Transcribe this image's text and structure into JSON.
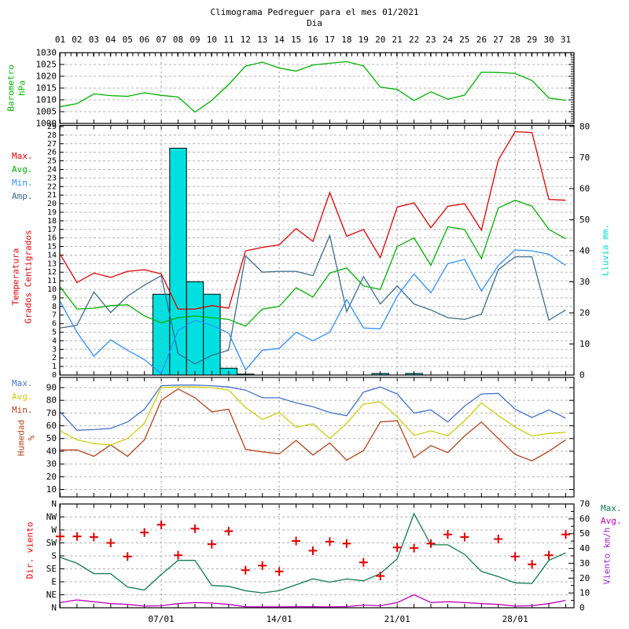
{
  "title": "Climograma Pedreguer para el mes 01/2021",
  "subtitle": "Dia",
  "x_axis": {
    "day_labels": [
      "01",
      "02",
      "03",
      "04",
      "05",
      "06",
      "07",
      "08",
      "09",
      "10",
      "11",
      "12",
      "13",
      "14",
      "15",
      "16",
      "17",
      "18",
      "19",
      "20",
      "21",
      "22",
      "23",
      "24",
      "25",
      "26",
      "27",
      "28",
      "29",
      "30",
      "31"
    ],
    "week_labels": [
      {
        "label": "07/01",
        "day": 7
      },
      {
        "label": "14/01",
        "day": 14
      },
      {
        "label": "21/01",
        "day": 21
      },
      {
        "label": "28/01",
        "day": 28
      }
    ]
  },
  "chart_data": [
    {
      "id": "barometer",
      "type": "line",
      "ylabel1": "Barometro",
      "ylabel2": "hPa",
      "color": "#00b000",
      "ylim": [
        1000,
        1030
      ],
      "yticks": [
        1000,
        1005,
        1010,
        1015,
        1020,
        1025,
        1030
      ],
      "grid": "dashed",
      "values": [
        1007.1,
        1008.4,
        1012.5,
        1011.8,
        1011.5,
        1013.0,
        1011.9,
        1011.2,
        1004.8,
        1009.8,
        1016.5,
        1024.3,
        1026.0,
        1023.5,
        1022.2,
        1024.8,
        1025.5,
        1026.2,
        1024.4,
        1015.4,
        1014.4,
        1009.7,
        1013.4,
        1010.3,
        1012.0,
        1021.7,
        1021.6,
        1021.2,
        1018.2,
        1010.8,
        1009.8
      ]
    },
    {
      "id": "temperature_rain",
      "type": "line+bar",
      "ylabel1": "Temperatura",
      "ylabel2": "Grados Centigrados",
      "axis_label_color": "#e00000",
      "ylim": [
        0,
        29
      ],
      "ytick_step": 1,
      "legend": [
        {
          "label": "Max.",
          "color": "#e00000"
        },
        {
          "label": "Avg.",
          "color": "#00b000"
        },
        {
          "label": "Min.",
          "color": "#2f8fff"
        },
        {
          "label": "Amp.",
          "color": "#3c6d8c"
        }
      ],
      "series": {
        "max": [
          14.1,
          10.8,
          11.9,
          11.4,
          12.1,
          12.3,
          11.8,
          7.7,
          7.7,
          8.1,
          7.8,
          14.5,
          14.9,
          15.2,
          17.1,
          15.6,
          21.3,
          16.2,
          17.0,
          13.7,
          19.6,
          20.1,
          17.2,
          19.7,
          20.0,
          16.9,
          25.1,
          28.4,
          28.3,
          20.5,
          20.4
        ],
        "avg": [
          10.3,
          7.7,
          7.8,
          8.1,
          8.2,
          6.9,
          6.1,
          6.7,
          6.9,
          6.7,
          6.5,
          5.7,
          7.7,
          8.0,
          10.2,
          9.1,
          11.9,
          12.5,
          10.4,
          10.0,
          15.0,
          16.0,
          12.8,
          17.3,
          17.0,
          13.6,
          19.5,
          20.4,
          19.7,
          17.0,
          15.9
        ],
        "min": [
          8.6,
          5.0,
          2.2,
          4.1,
          2.9,
          1.8,
          0.2,
          5.2,
          6.4,
          5.8,
          4.9,
          0.6,
          2.9,
          3.1,
          5.0,
          4.0,
          5.0,
          8.8,
          5.5,
          5.4,
          9.2,
          11.8,
          9.6,
          13.0,
          13.5,
          9.8,
          12.8,
          14.6,
          14.5,
          14.1,
          12.8
        ],
        "amp": [
          5.5,
          5.8,
          9.7,
          7.3,
          9.2,
          10.5,
          11.6,
          2.5,
          1.3,
          2.3,
          2.9,
          13.9,
          12.0,
          12.1,
          12.1,
          11.6,
          16.3,
          7.4,
          11.5,
          8.3,
          10.4,
          8.3,
          7.6,
          6.7,
          6.5,
          7.1,
          12.3,
          13.8,
          13.8,
          6.4,
          7.6
        ]
      },
      "rain_axis_label": "Lluvia mm.",
      "rain_color": "#00e0e0",
      "rain_label_color": "#00d4d4",
      "rain_ylim": [
        0,
        80
      ],
      "rain_yticks": [
        0,
        10,
        20,
        30,
        40,
        50,
        60,
        70,
        80
      ],
      "rain_values": [
        0,
        0,
        0,
        0,
        0,
        0,
        26,
        73,
        30,
        26,
        2.2,
        0.3,
        0,
        0,
        0,
        0,
        0,
        0,
        0,
        0.5,
        0,
        0.5,
        0,
        0,
        0,
        0,
        0,
        0,
        0,
        0,
        0
      ]
    },
    {
      "id": "humidity",
      "type": "line",
      "ylabel1": "Humedad",
      "ylabel2": "%",
      "axis_label_color": "#b2451b",
      "ylim": [
        0,
        100
      ],
      "yticks": [
        10,
        20,
        30,
        40,
        50,
        60,
        70,
        80,
        90
      ],
      "legend": [
        {
          "label": "Max.",
          "color": "#4472cc"
        },
        {
          "label": "Avg.",
          "color": "#cdcd11"
        },
        {
          "label": "Min.",
          "color": "#b2451b"
        }
      ],
      "series": {
        "max": [
          71,
          56.5,
          57,
          58,
          63,
          73,
          91.5,
          92,
          92,
          91.5,
          90.5,
          88,
          82,
          82,
          78,
          75,
          70.5,
          68,
          86.5,
          90.5,
          85,
          70,
          72.5,
          63,
          75.5,
          85,
          85.5,
          73,
          66.5,
          72.5,
          66
        ],
        "avg": [
          56,
          49,
          46,
          45,
          50,
          62,
          90,
          90.5,
          90.5,
          90,
          88,
          74.5,
          65,
          70.5,
          59,
          61.5,
          50,
          62,
          77,
          79,
          67,
          52.5,
          56,
          52,
          64,
          78,
          68,
          59,
          52,
          54,
          55
        ],
        "min": [
          41,
          41,
          36,
          45,
          36,
          49,
          80,
          89,
          82,
          71,
          73,
          41.5,
          39.5,
          38,
          48.5,
          37,
          46.5,
          33,
          40.5,
          63,
          64,
          35,
          44.5,
          39,
          52,
          63,
          50,
          37.5,
          32.5,
          40,
          49
        ]
      }
    },
    {
      "id": "wind",
      "type": "line+scatter",
      "ylabel1": "Dir. viento",
      "dir_color": "#e00000",
      "dir_axis": [
        "N",
        "NW",
        "W",
        "SW",
        "S",
        "SE",
        "E",
        "NE",
        "N"
      ],
      "dir_scale": "0=N 1=NW 2=W 3=SW 4=S 5=SE 6=E 7=NE 8=N",
      "dir_values": [
        2.5,
        2.5,
        2.55,
        3.0,
        4.05,
        2.2,
        1.6,
        3.95,
        1.9,
        3.1,
        2.1,
        5.1,
        4.75,
        5.2,
        2.85,
        3.6,
        2.9,
        3.05,
        4.5,
        5.55,
        3.35,
        3.4,
        3.05,
        2.35,
        2.55,
        null,
        2.7,
        4.05,
        4.65,
        3.95,
        2.35
      ],
      "speed_axis_label": "Viento km/h",
      "speed_axis_color": "#a020d0",
      "speed_ylim": [
        0,
        70
      ],
      "speed_yticks": [
        0,
        10,
        20,
        30,
        40,
        50,
        60,
        70
      ],
      "legend": [
        {
          "label": "Max.",
          "color": "#127a50"
        },
        {
          "label": "Avg.",
          "color": "#bb00bb"
        }
      ],
      "speed": {
        "max": [
          34,
          30,
          23,
          23,
          14,
          12,
          22.5,
          32,
          32,
          15,
          14.5,
          11.5,
          10,
          11.5,
          15.5,
          19.5,
          17.3,
          19.4,
          18.2,
          23,
          33,
          63.5,
          42.5,
          42.5,
          36,
          24.5,
          21,
          16.8,
          16.4,
          32,
          37
        ],
        "avg": [
          3.5,
          5.3,
          4.1,
          2.8,
          2.3,
          1.1,
          1.4,
          2.8,
          3.5,
          3.2,
          2.3,
          0.7,
          0.6,
          0.6,
          0.7,
          0.7,
          0.6,
          0.8,
          1.8,
          1.4,
          3.5,
          8.8,
          3.5,
          4.1,
          3.5,
          2.8,
          2.3,
          1.1,
          1.4,
          2.8,
          5.0
        ]
      }
    }
  ]
}
